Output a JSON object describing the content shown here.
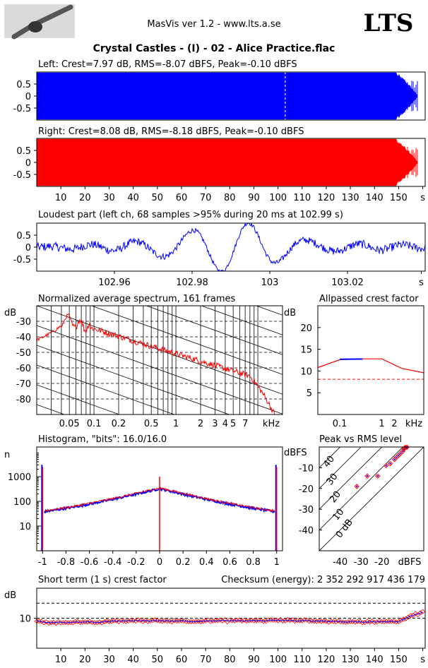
{
  "header": {
    "app_title": "MasVis ver 1.2 - www.lts.a.se",
    "logo_text": "LTS",
    "track_title": "Crystal Castles - (I) - 02 - Alice Practice.flac"
  },
  "colors": {
    "left": "#0000ff",
    "right": "#ff0000",
    "grid": "#000000"
  },
  "chart_data": [
    {
      "type": "area",
      "title": "Left: Crest=7.97 dB, RMS=-8.07 dBFS, Peak=-0.10 dBFS",
      "yticks": [
        "0.5",
        "0",
        "-0.5"
      ],
      "ylim": [
        -1,
        1
      ],
      "xlim": [
        0,
        161
      ],
      "marker_x": 102.99,
      "color": "#0000ff"
    },
    {
      "type": "area",
      "title": "Right: Crest=8.08 dB, RMS=-8.18 dBFS, Peak=-0.10 dBFS",
      "yticks": [
        "0.5",
        "0",
        "-0.5"
      ],
      "ylim": [
        -1,
        1
      ],
      "xlim": [
        0,
        161
      ],
      "xticks": [
        "10",
        "20",
        "30",
        "40",
        "50",
        "60",
        "70",
        "80",
        "90",
        "100",
        "110",
        "120",
        "130",
        "140",
        "150",
        "s"
      ],
      "color": "#ff0000"
    },
    {
      "type": "line",
      "title": "Loudest part (left  ch, 68 samples >95% during 20 ms at 102.99 s)",
      "yticks": [
        "0.5",
        "0",
        "-0.5"
      ],
      "xticks": [
        "102.96",
        "102.98",
        "103",
        "103.02",
        "s"
      ],
      "xlim": [
        102.94,
        103.04
      ],
      "color": "#0000ff"
    },
    {
      "type": "line",
      "title": "Normalized average spectrum, 161 frames",
      "ylabel": "dB",
      "yticks": [
        "-30",
        "-40",
        "-50",
        "-60",
        "-70",
        "-80"
      ],
      "xticks": [
        "0.05",
        "0.1",
        "0.2",
        "0.5",
        "1",
        "2",
        "3",
        "4",
        "5",
        "7",
        "kHz"
      ],
      "ylim": [
        -90,
        -20
      ],
      "x_scale": "log",
      "color": "#ff0000"
    },
    {
      "type": "line",
      "title": "Allpassed crest factor",
      "ylabel": "dB",
      "yticks": [
        "20",
        "15",
        "10",
        "5"
      ],
      "xticks": [
        "0.1",
        "1",
        "2",
        "kHz"
      ],
      "ylim": [
        0,
        25
      ],
      "x": [
        0.03,
        0.1,
        0.3,
        1,
        3,
        10
      ],
      "values": [
        10.8,
        12.6,
        12.8,
        12.8,
        10.6,
        9.6
      ],
      "reference_dashed": 8.1
    },
    {
      "type": "line",
      "title": "Histogram, \"bits\": 16.0/16.0",
      "ylabel": "n",
      "yticks": [
        "1000",
        "100",
        "10"
      ],
      "xticks": [
        "-1",
        "-0.8",
        "-0.6",
        "-0.4",
        "-0.2",
        "0",
        "0.2",
        "0.4",
        "0.6",
        "0.8",
        "1"
      ],
      "xlim": [
        -1.05,
        1.05
      ],
      "y_scale": "log",
      "x": [
        -1.0,
        -0.99,
        -0.8,
        -0.6,
        -0.4,
        -0.2,
        0.0,
        0.2,
        0.4,
        0.6,
        0.8,
        0.99,
        1.0
      ],
      "values": [
        3000,
        22,
        45,
        70,
        110,
        170,
        330,
        170,
        110,
        70,
        45,
        22,
        3000
      ]
    },
    {
      "type": "scatter",
      "title": "Peak vs RMS level",
      "ylabel": "dBFS",
      "xlabel": "dBFS",
      "yticks": [
        "-10",
        "-20",
        "-30",
        "-40"
      ],
      "xticks": [
        "-40",
        "-30",
        "-20"
      ],
      "diagonal_labels": [
        "40",
        "30",
        "20",
        "10",
        "0 dB"
      ],
      "x": [
        -32,
        -27,
        -22,
        -18,
        -16,
        -14,
        -13,
        -12,
        -11,
        -10,
        -9.5,
        -9,
        -8.5,
        -8
      ],
      "y": [
        -19,
        -14,
        -14,
        -9,
        -8,
        -6,
        -5,
        -4,
        -3,
        -2,
        -1,
        -0.3,
        -0.2,
        -0.1
      ]
    },
    {
      "type": "scatter",
      "title": "Short term (1 s) crest factor",
      "checksum": "Checksum (energy):  2 352 292 917 436 179",
      "ylabel": "dB",
      "yticks": [
        "10"
      ],
      "xticks": [
        "10",
        "20",
        "30",
        "40",
        "50",
        "60",
        "70",
        "80",
        "90",
        "100",
        "110",
        "120",
        "130",
        "140",
        "150",
        "s"
      ],
      "xlim": [
        0,
        161
      ],
      "ylim": [
        0,
        20
      ],
      "reference_dashed": [
        10,
        15
      ],
      "x": [
        0,
        5,
        10,
        15,
        20,
        25,
        30,
        35,
        40,
        45,
        50,
        55,
        60,
        65,
        70,
        75,
        80,
        85,
        90,
        95,
        100,
        105,
        110,
        115,
        120,
        125,
        130,
        135,
        140,
        145,
        150,
        153,
        156,
        158,
        160
      ],
      "values": [
        9.0,
        8.6,
        8.6,
        8.7,
        8.6,
        8.6,
        8.9,
        9.1,
        9.2,
        9.1,
        9.2,
        9.1,
        9.1,
        9.0,
        9.1,
        9.1,
        9.2,
        9.1,
        9.2,
        9.2,
        9.3,
        9.2,
        9.2,
        9.1,
        9.0,
        8.9,
        8.8,
        8.7,
        8.9,
        8.9,
        9.0,
        10.0,
        11.0,
        11.5,
        12.0
      ]
    }
  ]
}
